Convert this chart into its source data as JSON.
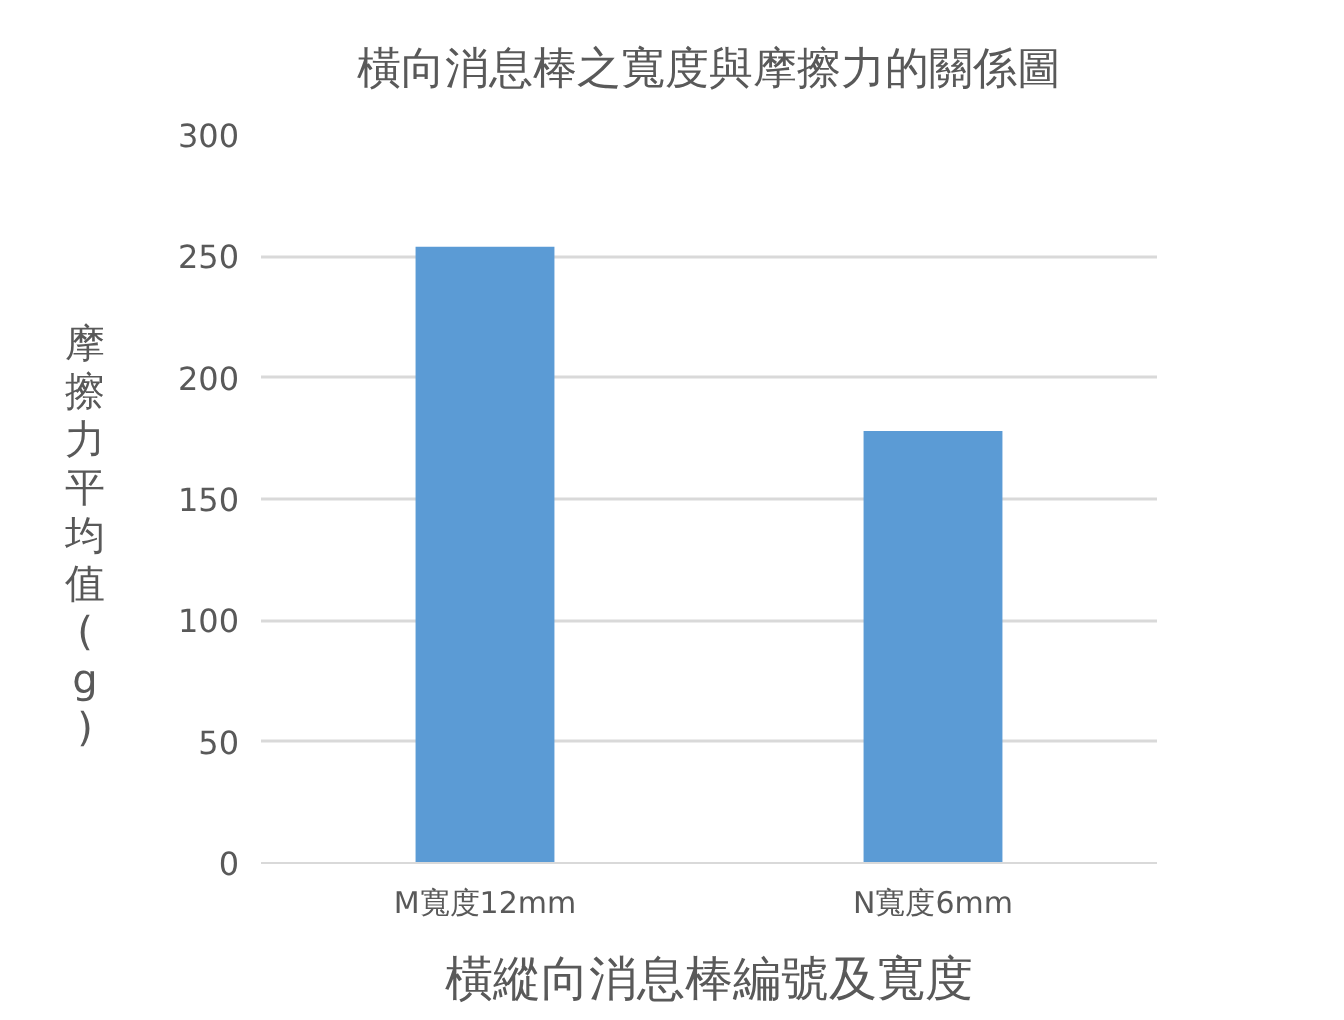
{
  "chart_data": {
    "type": "bar",
    "title": "橫向消息棒之寬度與摩擦力的關係圖",
    "xlabel": "橫縱向消息棒編號及寬度",
    "ylabel": "摩擦力平均值(g)",
    "categories": [
      "M寬度12mm",
      "N寬度6mm"
    ],
    "values": [
      254,
      178
    ],
    "color": "#5b9bd5",
    "ylim": [
      0,
      300
    ],
    "yticks": [
      0,
      50,
      100,
      150,
      200,
      250,
      300
    ],
    "grid": "y"
  }
}
